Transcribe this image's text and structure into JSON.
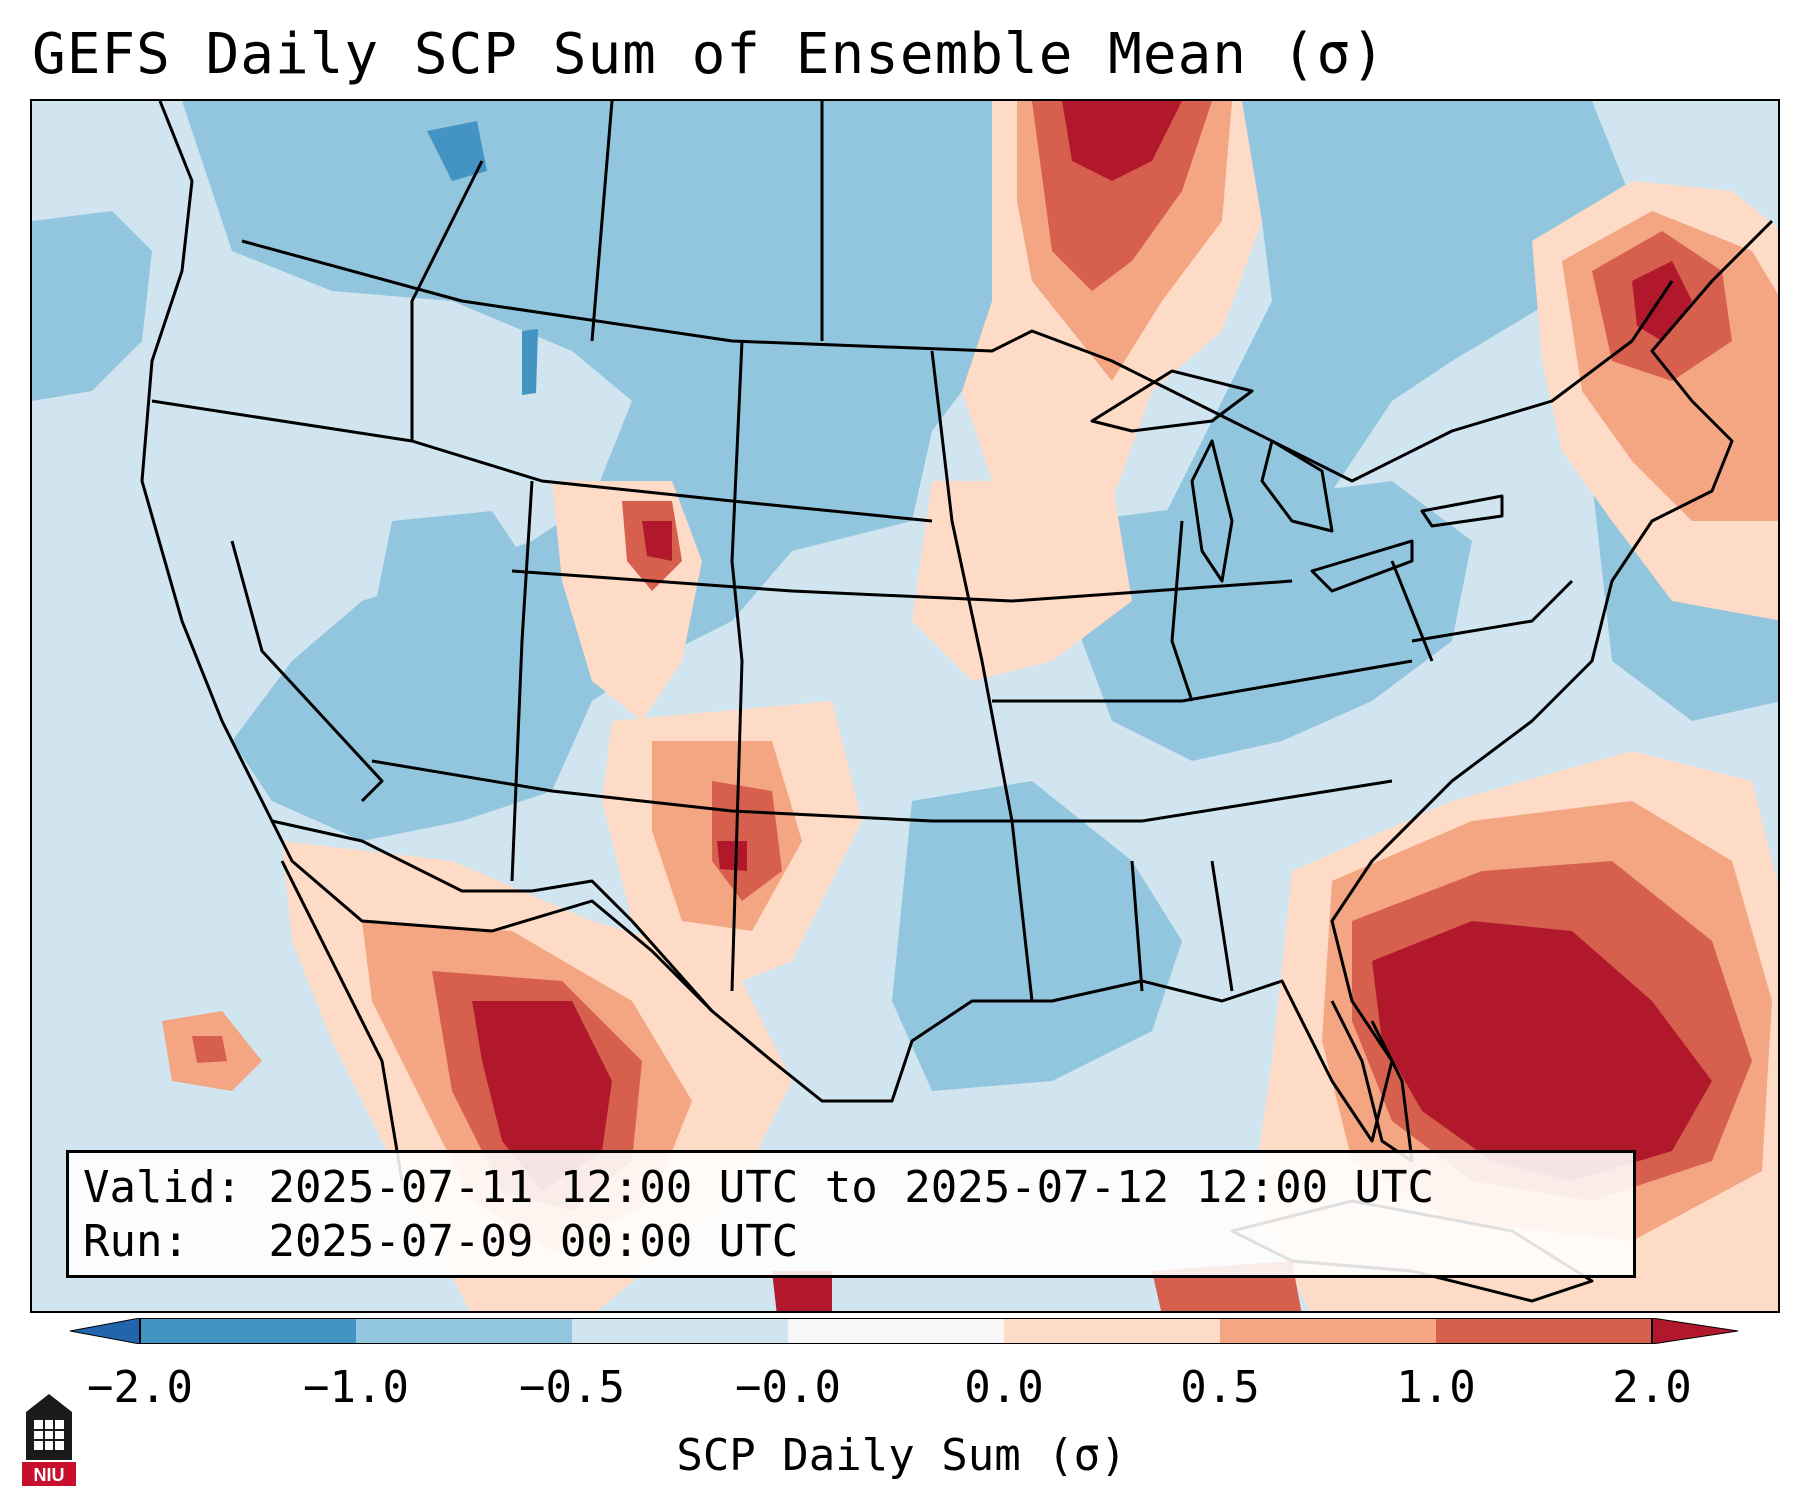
{
  "title": "GEFS Daily SCP Sum of Ensemble Mean (σ)",
  "info": {
    "valid_label": "Valid:",
    "valid_value": "2025-07-11 12:00 UTC to 2025-07-12 12:00 UTC",
    "run_label": "Run:",
    "run_value": "2025-07-09 00:00 UTC"
  },
  "colorbar": {
    "label": "SCP Daily Sum (σ)",
    "ticks": [
      "−2.0",
      "−1.0",
      "−0.5",
      "−0.0",
      "0.0",
      "0.5",
      "1.0",
      "2.0"
    ],
    "colors": [
      "#4393c3",
      "#92c5de",
      "#d1e5f0",
      "#f7f7f7",
      "#fddbc7",
      "#f4a582",
      "#d6604d",
      "#b2182b"
    ],
    "extend_low_color": "#2166ac",
    "extend_high_color": "#b2182b"
  },
  "colors": {
    "ocean_base": "#d1e5f0",
    "negative_mid": "#92c5de",
    "negative_strong": "#4393c3",
    "positive_weak": "#fddbc7",
    "positive_mid": "#f4a582",
    "positive_strong": "#d6604d",
    "positive_max": "#b2182b"
  },
  "logo": {
    "text": "NIU",
    "icon": "niu-tower-icon"
  }
}
